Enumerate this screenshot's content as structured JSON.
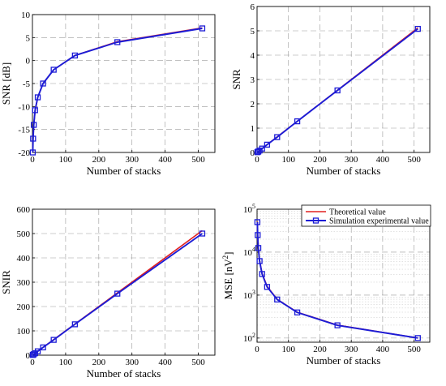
{
  "chart_data": [
    {
      "type": "line",
      "title": "",
      "xlabel": "Number of stacks",
      "ylabel": "SNR [dB]",
      "xlim": [
        0,
        550
      ],
      "ylim": [
        -20,
        10
      ],
      "xticks": [
        0,
        100,
        200,
        300,
        400,
        500
      ],
      "yticks": [
        -20,
        -15,
        -10,
        -5,
        0,
        5,
        10
      ],
      "x_tick_labels": [
        "0",
        "100",
        "200",
        "300",
        "400",
        "500"
      ],
      "y_tick_labels": [
        "-20",
        "-15",
        "-10",
        "-5",
        "0",
        "5",
        "10"
      ],
      "grid": true,
      "series": [
        {
          "name": "Theoretical value",
          "color": "#e02020",
          "markers": false,
          "x": [
            1,
            2,
            4,
            8,
            16,
            32,
            64,
            128,
            256,
            512
          ],
          "y": [
            -20,
            -17,
            -14,
            -11,
            -8,
            -5,
            -2,
            1.1,
            4.1,
            7.1
          ]
        },
        {
          "name": "Simulation experimental value",
          "color": "#1c1cd6",
          "markers": true,
          "x": [
            1,
            2,
            4,
            8,
            16,
            32,
            64,
            128,
            256,
            512
          ],
          "y": [
            -20,
            -17,
            -14,
            -10.8,
            -8,
            -5,
            -2,
            1.1,
            4,
            7
          ]
        }
      ]
    },
    {
      "type": "line",
      "title": "",
      "xlabel": "Number of stacks",
      "ylabel": "SNR",
      "xlim": [
        0,
        550
      ],
      "ylim": [
        0,
        6
      ],
      "xticks": [
        0,
        100,
        200,
        300,
        400,
        500
      ],
      "yticks": [
        0,
        1,
        2,
        3,
        4,
        5,
        6
      ],
      "x_tick_labels": [
        "0",
        "100",
        "200",
        "300",
        "400",
        "500"
      ],
      "y_tick_labels": [
        "0",
        "1",
        "2",
        "3",
        "4",
        "5",
        "6"
      ],
      "grid": true,
      "series": [
        {
          "name": "Theoretical value",
          "color": "#e02020",
          "markers": false,
          "x": [
            1,
            2,
            4,
            8,
            16,
            32,
            64,
            128,
            256,
            512
          ],
          "y": [
            0.01,
            0.02,
            0.04,
            0.08,
            0.16,
            0.32,
            0.64,
            1.28,
            2.56,
            5.12
          ]
        },
        {
          "name": "Simulation experimental value",
          "color": "#1c1cd6",
          "markers": true,
          "x": [
            1,
            2,
            4,
            8,
            16,
            32,
            64,
            128,
            256,
            512
          ],
          "y": [
            0.01,
            0.02,
            0.04,
            0.08,
            0.16,
            0.32,
            0.63,
            1.28,
            2.55,
            5.08
          ]
        }
      ]
    },
    {
      "type": "line",
      "title": "",
      "xlabel": "Number of stacks",
      "ylabel": "SNIR",
      "xlim": [
        0,
        550
      ],
      "ylim": [
        0,
        600
      ],
      "xticks": [
        0,
        100,
        200,
        300,
        400,
        500
      ],
      "yticks": [
        0,
        100,
        200,
        300,
        400,
        500,
        600
      ],
      "x_tick_labels": [
        "0",
        "100",
        "200",
        "300",
        "400",
        "500"
      ],
      "y_tick_labels": [
        "0",
        "100",
        "200",
        "300",
        "400",
        "500",
        "600"
      ],
      "grid": true,
      "series": [
        {
          "name": "Theoretical value",
          "color": "#e02020",
          "markers": false,
          "x": [
            1,
            2,
            4,
            8,
            16,
            32,
            64,
            128,
            256,
            512
          ],
          "y": [
            1,
            2,
            4,
            8,
            16,
            32,
            64,
            128,
            256,
            512
          ]
        },
        {
          "name": "Simulation experimental value",
          "color": "#1c1cd6",
          "markers": true,
          "x": [
            1,
            2,
            4,
            8,
            16,
            32,
            64,
            128,
            256,
            512
          ],
          "y": [
            1,
            2,
            4,
            8,
            16,
            32,
            63,
            127,
            253,
            500
          ]
        }
      ]
    },
    {
      "type": "line",
      "title": "",
      "xlabel": "Number of stacks",
      "ylabel": "MSE [nV²]",
      "ylabel_base": "MSE [nV",
      "ylabel_sup": "2",
      "ylabel_end": "]",
      "xlim": [
        0,
        550
      ],
      "ylim": [
        80,
        100000
      ],
      "yscale": "log",
      "xticks": [
        0,
        100,
        200,
        300,
        400,
        500
      ],
      "x_tick_labels": [
        "0",
        "100",
        "200",
        "300",
        "400",
        "500"
      ],
      "ydecades": [
        {
          "value": 100,
          "base": "10",
          "exp": "2"
        },
        {
          "value": 1000,
          "base": "10",
          "exp": "3"
        },
        {
          "value": 10000,
          "base": "10",
          "exp": "4"
        },
        {
          "value": 100000,
          "base": "10",
          "exp": "5"
        }
      ],
      "grid": true,
      "legend_position": "top-right",
      "legend": [
        "Theoretical value",
        "Simulation experimental value"
      ],
      "series": [
        {
          "name": "Theoretical value",
          "color": "#e02020",
          "markers": false,
          "x": [
            1,
            2,
            4,
            8,
            16,
            32,
            64,
            128,
            256,
            512
          ],
          "y": [
            51200,
            25600,
            12800,
            6400,
            3200,
            1600,
            800,
            400,
            200,
            100
          ]
        },
        {
          "name": "Simulation experimental value",
          "color": "#1c1cd6",
          "markers": true,
          "x": [
            1,
            2,
            4,
            8,
            16,
            32,
            64,
            128,
            256,
            512
          ],
          "y": [
            50000,
            25000,
            12500,
            6200,
            3100,
            1550,
            790,
            395,
            198,
            100
          ]
        }
      ]
    }
  ]
}
